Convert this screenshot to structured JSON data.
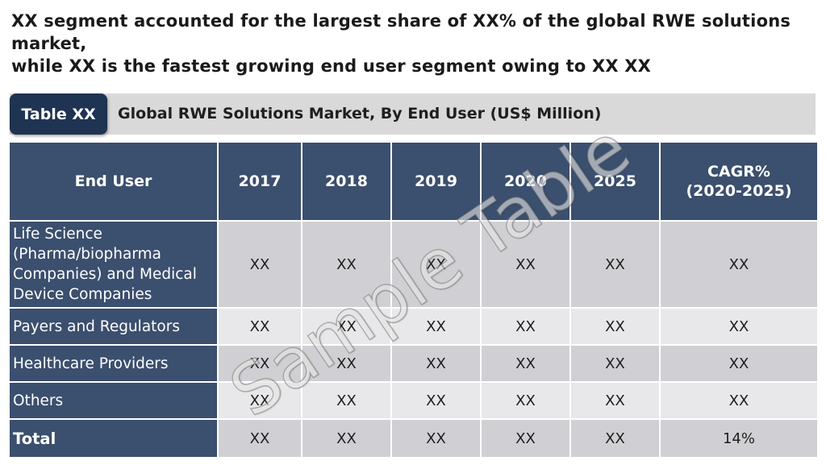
{
  "headline": {
    "line1": "XX segment accounted for the largest share of XX% of the global RWE solutions market,",
    "line2": "while XX is the fastest growing end user segment owing to XX XX"
  },
  "caption": {
    "tag": "Table XX",
    "title": "Global RWE Solutions Market, By End User (US$ Million)"
  },
  "table": {
    "headers": [
      "End User",
      "2017",
      "2018",
      "2019",
      "2020",
      "2025",
      "CAGR%",
      "(2020-2025)"
    ],
    "rows": [
      {
        "label": [
          "Life Science",
          "(Pharma/biopharma",
          "Companies) and Medical",
          "Device Companies"
        ],
        "values": [
          "XX",
          "XX",
          "XX",
          "XX",
          "XX",
          "XX"
        ]
      },
      {
        "label": [
          "Payers and Regulators"
        ],
        "values": [
          "XX",
          "XX",
          "XX",
          "XX",
          "XX",
          "XX"
        ]
      },
      {
        "label": [
          "Healthcare Providers"
        ],
        "values": [
          "XX",
          "XX",
          "XX",
          "XX",
          "XX",
          "XX"
        ]
      },
      {
        "label": [
          "Others"
        ],
        "values": [
          "XX",
          "XX",
          "XX",
          "XX",
          "XX",
          "XX"
        ]
      },
      {
        "label": [
          "Total"
        ],
        "values": [
          "XX",
          "XX",
          "XX",
          "XX",
          "XX",
          "14%"
        ]
      }
    ]
  },
  "watermark": "Sample Table",
  "colors": {
    "header_bg": "#3b4f6e",
    "tag_bg": "#1f3352",
    "caption_bar": "#d9d9d9",
    "row_odd": "#d0d0d4",
    "row_even": "#e8e8ea"
  }
}
